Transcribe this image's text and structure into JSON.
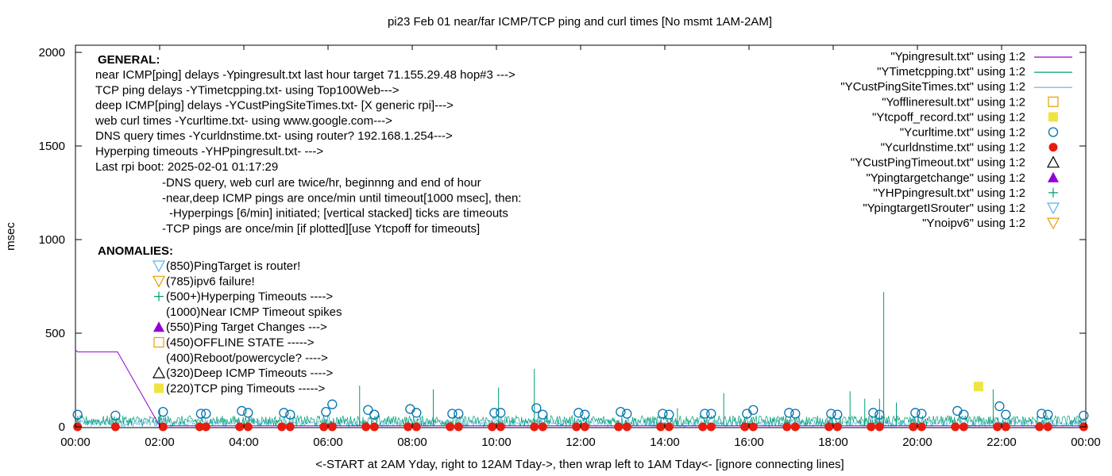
{
  "chart_data": {
    "type": "line",
    "title": "pi23 Feb 01  near/far ICMP/TCP ping and curl times [No msmt 1AM-2AM]",
    "xlabel": "<-START at 2AM Yday, right to 12AM Tday->, then wrap left to 1AM Tday<- [ignore connecting lines]",
    "ylabel": "msec",
    "xlim": [
      0,
      24
    ],
    "ylim": [
      0,
      2100
    ],
    "x_ticks": [
      "00:00",
      "02:00",
      "04:00",
      "06:00",
      "08:00",
      "10:00",
      "12:00",
      "14:00",
      "16:00",
      "18:00",
      "20:00",
      "22:00",
      "00:00"
    ],
    "y_ticks": [
      "0",
      "500",
      "1000",
      "1500",
      "2000"
    ],
    "y_tick_values": [
      0,
      500,
      1000,
      1500,
      2000
    ],
    "grid": false,
    "legend_position": "top-right",
    "legend": [
      {
        "label": "\"Ypingresult.txt\" using 1:2",
        "kind": "line",
        "color": "#9400d3"
      },
      {
        "label": "\"YTimetcpping.txt\" using 1:2",
        "kind": "line",
        "color": "#009e73"
      },
      {
        "label": "\"YCustPingSiteTimes.txt\" using 1:2",
        "kind": "line",
        "color": "#56b4e9"
      },
      {
        "label": "\"Yofflineresult.txt\" using 1:2",
        "kind": "open-square",
        "color": "#e69f00"
      },
      {
        "label": "\"Ytcpoff_record.txt\" using 1:2",
        "kind": "filled-square",
        "color": "#f0e442"
      },
      {
        "label": "\"Ycurltime.txt\" using 1:2",
        "kind": "open-circle",
        "color": "#0072b2"
      },
      {
        "label": "\"Ycurldnstime.txt\" using 1:2",
        "kind": "filled-circle",
        "color": "#e51e10"
      },
      {
        "label": "\"YCustPingTimeout.txt\" using 1:2",
        "kind": "open-triangle-up",
        "color": "#000000"
      },
      {
        "label": "\"Ypingtargetchange\" using 1:2",
        "kind": "filled-triangle-up",
        "color": "#9400d3"
      },
      {
        "label": "\"YHPpingresult.txt\" using 1:2",
        "kind": "plus",
        "color": "#009e73"
      },
      {
        "label": "\"YpingtargetISrouter\" using 1:2",
        "kind": "open-triangle-down",
        "color": "#56b4e9"
      },
      {
        "label": "\"Ynoipv6\" using 1:2",
        "kind": "open-triangle-down",
        "color": "#e69f00"
      }
    ],
    "annotations": {
      "general_header": "GENERAL:",
      "general_lines": [
        "near ICMP[ping] delays -Ypingresult.txt last hour target 71.155.29.48 hop#3 --->",
        "TCP ping delays -YTimetcpping.txt- using Top100Web--->",
        "deep ICMP[ping] delays -YCustPingSiteTimes.txt- [X generic rpi]--->",
        "web curl times -Ycurltime.txt- using www.google.com--->",
        "DNS query times -Ycurldnstime.txt- using router? 192.168.1.254--->",
        "Hyperping timeouts -YHPpingresult.txt- --->",
        "Last rpi boot: 2025-02-01 01:17:29"
      ],
      "indented_lines": [
        "-DNS query, web curl are twice/hr, beginnng and end of hour",
        "-near,deep ICMP pings are once/min until timeout[1000 msec], then:",
        "-Hyperpings [6/min] initiated; [vertical stacked] ticks are timeouts",
        "-TCP pings are once/min [if plotted][use Ytcpoff for timeouts]"
      ],
      "anomalies_header": "ANOMALIES:",
      "anomalies": [
        {
          "text": "(850)PingTarget is router!",
          "symbol": "open-triangle-down",
          "color": "#56b4e9"
        },
        {
          "text": "(785)ipv6 failure!",
          "symbol": "open-triangle-down",
          "color": "#e69f00"
        },
        {
          "text": "(500+)Hyperping Timeouts ---->",
          "symbol": "plus",
          "color": "#009e73"
        },
        {
          "text": "(1000)Near ICMP Timeout spikes",
          "symbol": "none",
          "color": "#000000"
        },
        {
          "text": "(550)Ping Target Changes --->",
          "symbol": "filled-triangle-up",
          "color": "#9400d3"
        },
        {
          "text": "(450)OFFLINE STATE ----->",
          "symbol": "open-square",
          "color": "#e69f00"
        },
        {
          "text": "(400)Reboot/powercycle? ---->",
          "symbol": "none",
          "color": "#000000"
        },
        {
          "text": "(320)Deep ICMP Timeouts ---->",
          "symbol": "open-triangle-up",
          "color": "#000000"
        },
        {
          "text": "(220)TCP ping Timeouts ----->",
          "symbol": "filled-square",
          "color": "#f0e442"
        }
      ]
    },
    "series": [
      {
        "name": "\"Ypingresult.txt\" using 1:2",
        "color": "#9400d3",
        "points": [
          [
            0,
            410
          ],
          [
            0.05,
            400
          ],
          [
            1.0,
            400
          ],
          [
            2.0,
            5
          ],
          [
            24,
            5
          ]
        ]
      },
      {
        "name": "\"YTimetcpping.txt\" using 1:2",
        "color": "#009e73",
        "baseline_range": [
          5,
          60
        ],
        "spikes": [
          [
            2.0,
            90
          ],
          [
            6.75,
            220
          ],
          [
            8.5,
            200
          ],
          [
            10.05,
            210
          ],
          [
            10.9,
            310
          ],
          [
            14.3,
            100
          ],
          [
            15.4,
            180
          ],
          [
            18.4,
            190
          ],
          [
            18.75,
            150
          ],
          [
            19.1,
            150
          ],
          [
            19.2,
            720
          ],
          [
            19.5,
            130
          ],
          [
            21.8,
            200
          ]
        ]
      },
      {
        "name": "\"YCustPingSiteTimes.txt\" using 1:2",
        "color": "#56b4e9",
        "baseline_range": [
          0,
          40
        ]
      },
      {
        "name": "\"Ytcpoff_record.txt\" using 1:2",
        "color": "#f0e442",
        "points": [
          [
            21.45,
            215
          ]
        ]
      },
      {
        "name": "\"Ycurltime.txt\" using 1:2",
        "color": "#0072b2",
        "points": [
          [
            0.05,
            65
          ],
          [
            0.95,
            60
          ],
          [
            2.08,
            80
          ],
          [
            2.98,
            70
          ],
          [
            3.1,
            70
          ],
          [
            3.95,
            85
          ],
          [
            4.1,
            75
          ],
          [
            4.95,
            75
          ],
          [
            5.1,
            65
          ],
          [
            5.95,
            80
          ],
          [
            6.1,
            120
          ],
          [
            6.95,
            90
          ],
          [
            7.1,
            65
          ],
          [
            7.95,
            95
          ],
          [
            8.1,
            75
          ],
          [
            8.95,
            70
          ],
          [
            9.1,
            70
          ],
          [
            9.95,
            75
          ],
          [
            10.1,
            75
          ],
          [
            10.95,
            100
          ],
          [
            11.1,
            65
          ],
          [
            11.95,
            75
          ],
          [
            12.1,
            65
          ],
          [
            12.95,
            80
          ],
          [
            13.1,
            70
          ],
          [
            13.95,
            70
          ],
          [
            14.1,
            65
          ],
          [
            14.95,
            70
          ],
          [
            15.1,
            70
          ],
          [
            15.95,
            70
          ],
          [
            16.1,
            90
          ],
          [
            16.95,
            75
          ],
          [
            17.1,
            70
          ],
          [
            17.95,
            70
          ],
          [
            18.1,
            65
          ],
          [
            18.95,
            75
          ],
          [
            19.1,
            65
          ],
          [
            19.95,
            75
          ],
          [
            20.1,
            70
          ],
          [
            20.95,
            85
          ],
          [
            21.1,
            65
          ],
          [
            21.95,
            110
          ],
          [
            22.1,
            65
          ],
          [
            22.95,
            70
          ],
          [
            23.1,
            65
          ],
          [
            23.95,
            60
          ]
        ]
      },
      {
        "name": "\"Ycurldnstime.txt\" using 1:2",
        "color": "#e51e10",
        "points": [
          [
            0.05,
            0
          ],
          [
            0.95,
            0
          ],
          [
            2.08,
            0
          ],
          [
            2.95,
            0
          ],
          [
            3.1,
            0
          ],
          [
            3.9,
            0
          ],
          [
            4.1,
            0
          ],
          [
            4.9,
            0
          ],
          [
            5.1,
            0
          ],
          [
            5.9,
            0
          ],
          [
            6.1,
            0
          ],
          [
            6.9,
            0
          ],
          [
            7.1,
            0
          ],
          [
            7.9,
            0
          ],
          [
            8.1,
            0
          ],
          [
            8.9,
            0
          ],
          [
            9.1,
            0
          ],
          [
            9.9,
            0
          ],
          [
            10.1,
            0
          ],
          [
            10.9,
            0
          ],
          [
            11.1,
            0
          ],
          [
            11.9,
            0
          ],
          [
            12.1,
            0
          ],
          [
            12.9,
            0
          ],
          [
            13.1,
            0
          ],
          [
            13.9,
            0
          ],
          [
            14.1,
            0
          ],
          [
            14.9,
            0
          ],
          [
            15.1,
            0
          ],
          [
            15.9,
            0
          ],
          [
            16.1,
            0
          ],
          [
            16.9,
            0
          ],
          [
            17.1,
            0
          ],
          [
            17.9,
            0
          ],
          [
            18.1,
            0
          ],
          [
            18.9,
            0
          ],
          [
            19.1,
            0
          ],
          [
            19.9,
            0
          ],
          [
            20.1,
            0
          ],
          [
            20.9,
            0
          ],
          [
            21.1,
            0
          ],
          [
            21.9,
            0
          ],
          [
            22.1,
            0
          ],
          [
            22.9,
            0
          ],
          [
            23.1,
            0
          ],
          [
            23.95,
            0
          ]
        ]
      }
    ]
  }
}
